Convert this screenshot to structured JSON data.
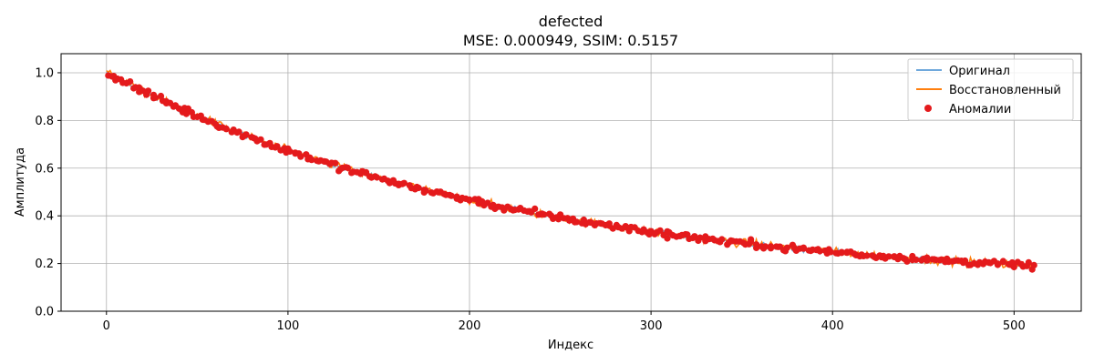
{
  "chart_data": {
    "type": "line",
    "title": "defected",
    "subtitle": "MSE: 0.000949, SSIM: 0.5157",
    "xlabel": "Индекс",
    "ylabel": "Амплитуда",
    "xlim": [
      -25,
      537
    ],
    "ylim": [
      0,
      1.08
    ],
    "x_ticks": [
      0,
      100,
      200,
      300,
      400,
      500
    ],
    "y_ticks": [
      0.0,
      0.2,
      0.4,
      0.6,
      0.8,
      1.0
    ],
    "x_tick_labels": [
      "0",
      "100",
      "200",
      "300",
      "400",
      "500"
    ],
    "y_tick_labels": [
      "0.0",
      "0.2",
      "0.4",
      "0.6",
      "0.8",
      "1.0"
    ],
    "grid": true,
    "legend_position": "top-right",
    "n_points": 512,
    "series": [
      {
        "name": "Оригинал",
        "kind": "line",
        "color": "#6fa8dc",
        "trend": {
          "start": 1.0,
          "decay": 0.0045,
          "floor": 0.1
        },
        "noise": 0.018
      },
      {
        "name": "Восстановленный",
        "kind": "line",
        "color": "#ff7f0e",
        "trend": {
          "start": 1.0,
          "decay": 0.0045,
          "floor": 0.1
        },
        "noise": 0.022
      },
      {
        "name": "Аномалии",
        "kind": "scatter",
        "color": "#e41a1c",
        "trend": {
          "start": 1.0,
          "decay": 0.0045,
          "floor": 0.1
        },
        "noise": 0.025,
        "count": 340
      }
    ]
  }
}
